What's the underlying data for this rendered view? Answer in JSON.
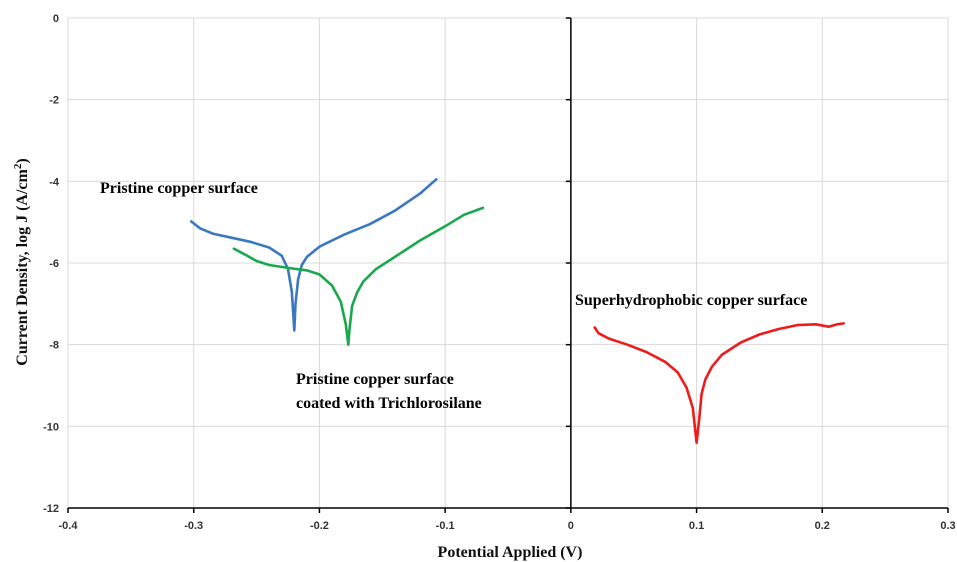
{
  "chart_data": {
    "type": "line",
    "title": "",
    "xlabel": "Potential Applied  (V)",
    "ylabel_main": "Current Density, log J (A/cm",
    "ylabel_sup": "2",
    "ylabel_close": ")",
    "xlim": [
      -0.4,
      0.3
    ],
    "ylim": [
      -12,
      0
    ],
    "x_ticks": [
      -0.4,
      -0.3,
      -0.2,
      -0.1,
      0,
      0.1,
      0.2,
      0.3
    ],
    "x_tick_labels": [
      "-0.4",
      "-0.3",
      "-0.2",
      "-0.1",
      "0",
      "0.1",
      "0.2",
      "0.3"
    ],
    "y_ticks": [
      0,
      -2,
      -4,
      -6,
      -8,
      -10,
      -12
    ],
    "y_tick_labels": [
      "0",
      "-2",
      "-4",
      "-6",
      "-8",
      "-10",
      "-12"
    ],
    "grid": true,
    "series": [
      {
        "name": "Pristine copper surface",
        "color": "#3a78c2",
        "x": [
          -0.302,
          -0.295,
          -0.285,
          -0.27,
          -0.255,
          -0.24,
          -0.23,
          -0.225,
          -0.222,
          -0.22,
          -0.219,
          -0.217,
          -0.214,
          -0.21,
          -0.2,
          -0.19,
          -0.18,
          -0.16,
          -0.14,
          -0.12,
          -0.107
        ],
        "y": [
          -4.98,
          -5.15,
          -5.28,
          -5.38,
          -5.48,
          -5.62,
          -5.82,
          -6.15,
          -6.7,
          -7.65,
          -7.0,
          -6.4,
          -6.05,
          -5.85,
          -5.6,
          -5.45,
          -5.3,
          -5.05,
          -4.72,
          -4.3,
          -3.95
        ]
      },
      {
        "name": "Pristine copper surface coated with Trichlorosilane",
        "color": "#1aa84e",
        "x": [
          -0.268,
          -0.26,
          -0.25,
          -0.24,
          -0.225,
          -0.21,
          -0.2,
          -0.19,
          -0.183,
          -0.179,
          -0.177,
          -0.176,
          -0.174,
          -0.17,
          -0.165,
          -0.155,
          -0.14,
          -0.12,
          -0.1,
          -0.085,
          -0.07
        ],
        "y": [
          -5.65,
          -5.78,
          -5.95,
          -6.05,
          -6.12,
          -6.18,
          -6.28,
          -6.55,
          -6.95,
          -7.5,
          -8.0,
          -7.6,
          -7.05,
          -6.72,
          -6.45,
          -6.15,
          -5.85,
          -5.45,
          -5.1,
          -4.82,
          -4.65
        ]
      },
      {
        "name": "Superhydrophobic copper surface",
        "color": "#ee1c1c",
        "x": [
          0.019,
          0.022,
          0.03,
          0.045,
          0.06,
          0.075,
          0.085,
          0.092,
          0.097,
          0.1,
          0.102,
          0.104,
          0.107,
          0.112,
          0.12,
          0.135,
          0.15,
          0.165,
          0.18,
          0.195,
          0.205,
          0.212,
          0.217
        ],
        "y": [
          -7.58,
          -7.72,
          -7.85,
          -8.0,
          -8.18,
          -8.42,
          -8.68,
          -9.05,
          -9.55,
          -10.4,
          -9.85,
          -9.2,
          -8.85,
          -8.55,
          -8.25,
          -7.95,
          -7.75,
          -7.62,
          -7.52,
          -7.5,
          -7.56,
          -7.5,
          -7.48
        ]
      }
    ],
    "annotations": {
      "pristine": "Pristine copper surface",
      "coated_line1": "Pristine copper surface",
      "coated_line2": "coated with Trichlorosilane",
      "superhydrophobic": "Superhydrophobic  copper surface"
    }
  }
}
